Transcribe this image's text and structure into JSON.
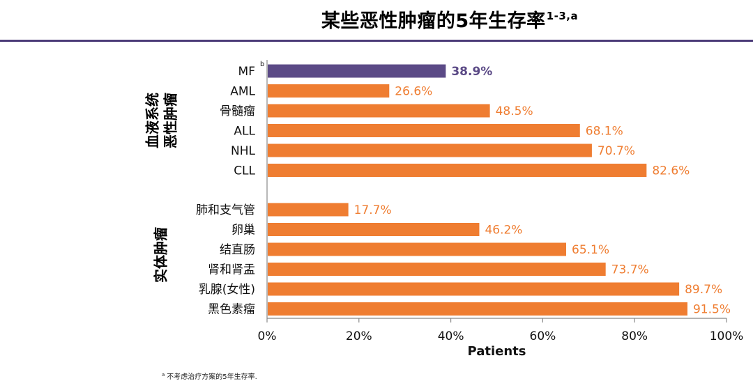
{
  "title": {
    "text": "某些恶性肿瘤的5年生存率",
    "superscript": "1-3,a"
  },
  "footnote": {
    "marker": "a",
    "text": "不考虑治疗方案的5年生存率."
  },
  "colors": {
    "highlight": "#5b4a86",
    "bar": "#ef7d31",
    "rule": "#4b3b78",
    "axis": "#888888"
  },
  "chart_data": {
    "type": "bar",
    "orientation": "horizontal",
    "xlabel": "Patients",
    "xlim": [
      0,
      100
    ],
    "xticks": [
      0,
      20,
      40,
      60,
      80,
      100
    ],
    "xtick_labels": [
      "0%",
      "20%",
      "40%",
      "60%",
      "80%",
      "100%"
    ],
    "groups": [
      {
        "name": "血液系统恶性肿瘤",
        "name_lines": [
          "血液系统",
          "恶性肿瘤"
        ],
        "bars": [
          {
            "label": "MF",
            "superscript": "b",
            "value": 38.9,
            "value_label": "38.9%",
            "highlight": true
          },
          {
            "label": "AML",
            "value": 26.6,
            "value_label": "26.6%"
          },
          {
            "label": "骨髓瘤",
            "value": 48.5,
            "value_label": "48.5%"
          },
          {
            "label": "ALL",
            "value": 68.1,
            "value_label": "68.1%"
          },
          {
            "label": "NHL",
            "value": 70.7,
            "value_label": "70.7%"
          },
          {
            "label": "CLL",
            "value": 82.6,
            "value_label": "82.6%"
          }
        ]
      },
      {
        "name": "实体肿瘤",
        "name_lines": [
          "实体肿瘤"
        ],
        "bars": [
          {
            "label": "肺和支气管",
            "value": 17.7,
            "value_label": "17.7%"
          },
          {
            "label": "卵巢",
            "value": 46.2,
            "value_label": "46.2%"
          },
          {
            "label": "结直肠",
            "value": 65.1,
            "value_label": "65.1%"
          },
          {
            "label": "肾和肾盂",
            "value": 73.7,
            "value_label": "73.7%"
          },
          {
            "label": "乳腺(女性)",
            "value": 89.7,
            "value_label": "89.7%"
          },
          {
            "label": "黑色素瘤",
            "value": 91.5,
            "value_label": "91.5%"
          }
        ]
      }
    ]
  }
}
